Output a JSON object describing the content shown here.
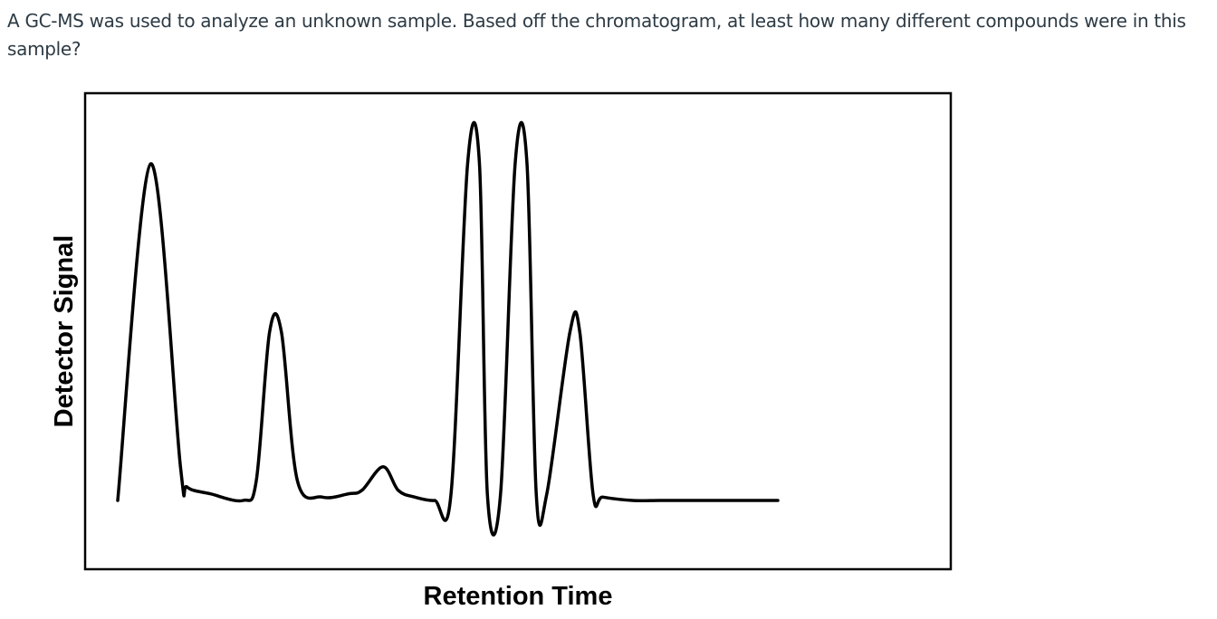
{
  "question": {
    "text": "A GC-MS was used to analyze an unknown sample. Based off the chromatogram, at least how many different compounds were in this sample?"
  },
  "chart_data": {
    "type": "line",
    "title": "",
    "xlabel": "Retention Time",
    "ylabel": "Detector Signal",
    "xlim": [
      0,
      100
    ],
    "ylim": [
      0,
      100
    ],
    "grid": false,
    "legend": "none",
    "axis_ticks": false,
    "colors": {
      "trace": "#000000",
      "frame": "#000000"
    },
    "series": [
      {
        "x": [
          0,
          5,
          9.5,
          10.5,
          14,
          19,
          21,
          23,
          24.8,
          27.2,
          31,
          35,
          37,
          40.2,
          42.5,
          45,
          48,
          50.5,
          53,
          54.8,
          56,
          58,
          60.2,
          62,
          63.4,
          65,
          68.5,
          70,
          72,
          73.5,
          78,
          82,
          86,
          100
        ],
        "y": [
          0,
          100,
          10,
          4,
          2,
          0,
          6,
          50,
          50,
          6,
          1,
          2,
          3,
          10,
          3,
          1,
          0,
          2,
          100,
          100,
          2,
          2,
          100,
          100,
          2,
          2,
          50,
          50,
          2,
          1,
          0,
          0,
          0,
          0
        ]
      }
    ]
  }
}
